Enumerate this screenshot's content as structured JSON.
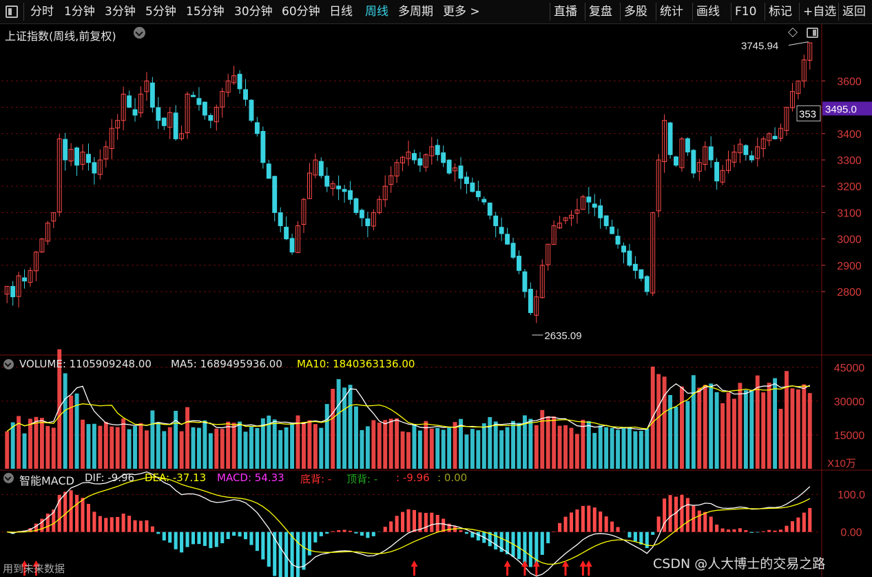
{
  "toolbar": {
    "periods": [
      "分时",
      "1分钟",
      "3分钟",
      "5分钟",
      "15分钟",
      "30分钟",
      "60分钟",
      "日线",
      "周线",
      "多周期",
      "更多 >"
    ],
    "active_period": "周线",
    "actions": [
      "直播",
      "复盘",
      "多股",
      "统计",
      "画线",
      "F10",
      "标记",
      "+自选",
      "返回"
    ]
  },
  "main": {
    "title": "上证指数(周线,前复权)",
    "high_label": "3745.94",
    "low_label": "2635.09",
    "current_price_tag": "3495.0",
    "last_price_label": "353"
  },
  "volume_panel": {
    "label": "VOLUME: 1105909248.00",
    "ma5": "MA5: 1689495936.00",
    "ma10": "MA10: 1840363136.00",
    "unit": "X10万"
  },
  "macd_panel": {
    "name": "智能MACD",
    "dif": "DIF: -9.96",
    "dea": "DEA: -37.13",
    "macd": "MACD: 54.33",
    "bottom_div": "底背: -",
    "top_div": "顶背: -",
    "extra1": ": -9.96",
    "extra2": ": 0.00",
    "footer": "用到未来数据"
  },
  "watermark": "CSDN @人大博士的交易之路",
  "colors": {
    "up": "#ff4a4a",
    "down": "#39d2e0",
    "white_line": "#ffffff",
    "yellow_line": "#ffff00",
    "magenta": "#ff33ff",
    "green": "#1fa81f",
    "grid": "#6e0b0b",
    "axis_text": "#d83b3b",
    "price_tag_bg": "#5a1ea8"
  },
  "chart_data": [
    {
      "type": "candlestick",
      "y_axis_ticks": [
        2800,
        2900,
        3000,
        3100,
        3200,
        3300,
        3400,
        3500,
        3600
      ],
      "ylim": [
        2580,
        3800
      ],
      "annotations": [
        "3745.94",
        "2635.09"
      ],
      "close_series": [
        2820,
        2780,
        2860,
        2840,
        2880,
        2950,
        3000,
        3060,
        3100,
        3380,
        3300,
        3340,
        3280,
        3330,
        3290,
        3250,
        3300,
        3350,
        3420,
        3450,
        3550,
        3500,
        3470,
        3550,
        3600,
        3500,
        3450,
        3430,
        3480,
        3380,
        3400,
        3550,
        3540,
        3510,
        3470,
        3450,
        3500,
        3560,
        3600,
        3620,
        3570,
        3530,
        3450,
        3400,
        3290,
        3230,
        3100,
        3050,
        3000,
        2950,
        3050,
        3150,
        3250,
        3300,
        3240,
        3200,
        3210,
        3190,
        3180,
        3150,
        3100,
        3080,
        3050,
        3100,
        3150,
        3200,
        3240,
        3290,
        3310,
        3330,
        3300,
        3280,
        3320,
        3350,
        3320,
        3290,
        3250,
        3270,
        3230,
        3210,
        3180,
        3160,
        3140,
        3090,
        3050,
        3020,
        2980,
        2930,
        2880,
        2800,
        2720,
        2780,
        2900,
        2980,
        3050,
        3060,
        3080,
        3090,
        3110,
        3160,
        3140,
        3120,
        3080,
        3050,
        3020,
        2980,
        2950,
        2900,
        2880,
        2850,
        2800,
        3100,
        3300,
        3450,
        3320,
        3280,
        3380,
        3330,
        3250,
        3290,
        3350,
        3300,
        3220,
        3260,
        3300,
        3330,
        3360,
        3320,
        3300,
        3350,
        3380,
        3400,
        3380,
        3420,
        3500,
        3560,
        3600,
        3680,
        3745
      ]
    },
    {
      "type": "bar",
      "name": "VOLUME",
      "y_axis_ticks": [
        15000,
        30000,
        45000
      ],
      "unit": "X10万",
      "ylim": [
        0,
        48000
      ]
    },
    {
      "type": "line",
      "name": "智能MACD",
      "y_axis_ticks": [
        "100.0",
        "0.00"
      ],
      "ylim": [
        -120,
        150
      ]
    }
  ]
}
